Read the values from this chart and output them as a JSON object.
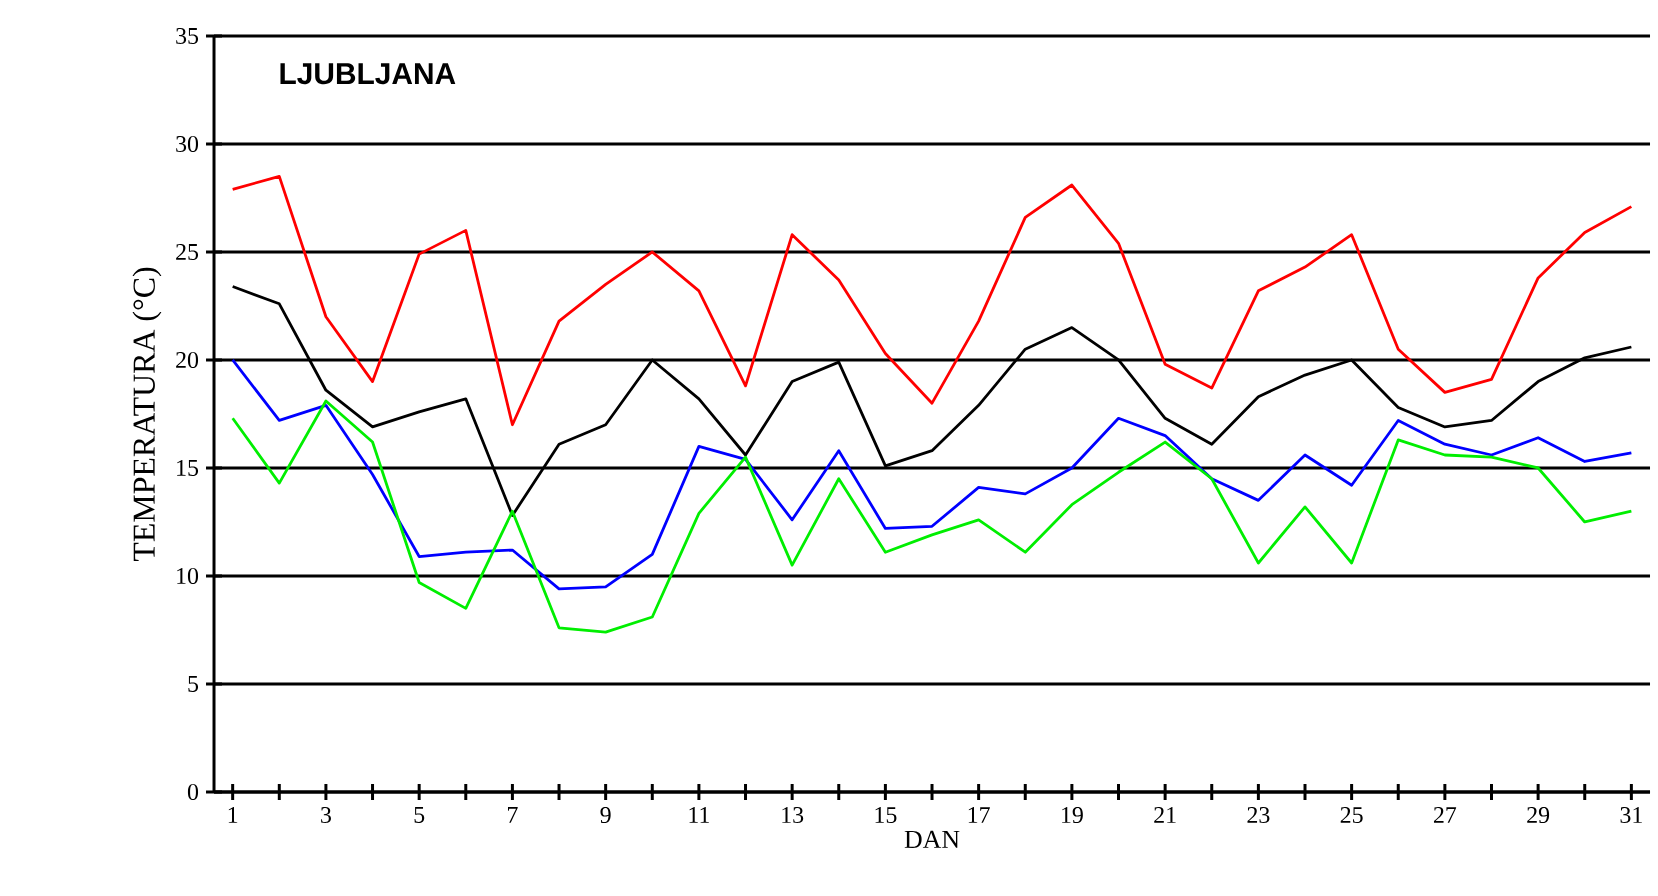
{
  "chart_data": {
    "type": "line",
    "title": "LJUBLJANA",
    "xlabel": "DAN",
    "ylabel": "TEMPERATURA (°C)",
    "x": [
      1,
      2,
      3,
      4,
      5,
      6,
      7,
      8,
      9,
      10,
      11,
      12,
      13,
      14,
      15,
      16,
      17,
      18,
      19,
      20,
      21,
      22,
      23,
      24,
      25,
      26,
      27,
      28,
      29,
      30,
      31
    ],
    "series": [
      {
        "color": "#ff0000",
        "values": [
          27.9,
          28.5,
          22,
          19,
          24.9,
          26,
          17,
          21.8,
          23.5,
          25,
          23.2,
          18.8,
          25.8,
          23.7,
          20.3,
          18,
          21.8,
          26.6,
          28.1,
          25.4,
          19.8,
          18.7,
          23.2,
          24.3,
          25.8,
          20.5,
          18.5,
          19.1,
          23.8,
          25.9,
          27.1
        ]
      },
      {
        "color": "#000000",
        "values": [
          23.4,
          22.6,
          18.6,
          16.9,
          17.6,
          18.2,
          12.8,
          16.1,
          17,
          20,
          18.2,
          15.6,
          19,
          19.9,
          15.1,
          15.8,
          17.9,
          20.5,
          21.5,
          20,
          17.3,
          16.1,
          18.3,
          19.3,
          20,
          17.8,
          16.9,
          17.2,
          19,
          20.1,
          20.6
        ]
      },
      {
        "color": "#0000ff",
        "values": [
          20,
          17.2,
          17.9,
          14.7,
          10.9,
          11.1,
          11.2,
          9.4,
          9.5,
          11,
          16,
          15.4,
          12.6,
          15.8,
          12.2,
          12.3,
          14.1,
          13.8,
          15,
          17.3,
          16.5,
          14.5,
          13.5,
          15.6,
          14.2,
          17.2,
          16.1,
          15.6,
          16.4,
          15.3,
          15.7
        ]
      },
      {
        "color": "#00ee00",
        "values": [
          17.3,
          14.3,
          18.1,
          16.2,
          9.7,
          8.5,
          13,
          7.6,
          7.4,
          8.1,
          12.9,
          15.5,
          10.5,
          14.5,
          11.1,
          11.9,
          12.6,
          11.1,
          13.3,
          14.8,
          16.2,
          14.5,
          10.6,
          13.2,
          10.6,
          16.3,
          15.6,
          15.5,
          15,
          12.5,
          13
        ]
      }
    ],
    "xlim": [
      0.6,
      31.4
    ],
    "ylim": [
      0,
      35
    ],
    "xticks": [
      1,
      {
        "value": 2,
        "label": null
      },
      3,
      {
        "value": 4,
        "label": null
      },
      5,
      {
        "value": 6,
        "label": null
      },
      7,
      {
        "value": 8,
        "label": null
      },
      9,
      {
        "value": 10,
        "label": null
      },
      11,
      {
        "value": 12,
        "label": null
      },
      13,
      {
        "value": 14,
        "label": null
      },
      15,
      {
        "value": 16,
        "label": null
      },
      17,
      {
        "value": 18,
        "label": null
      },
      19,
      {
        "value": 20,
        "label": null
      },
      21,
      {
        "value": 22,
        "label": null
      },
      23,
      {
        "value": 24,
        "label": null
      },
      25,
      {
        "value": 26,
        "label": null
      },
      27,
      {
        "value": 28,
        "label": null
      },
      29,
      {
        "value": 30,
        "label": null
      },
      31
    ],
    "yticks": [
      0,
      5,
      10,
      15,
      20,
      25,
      30,
      35
    ],
    "grid": "y",
    "marker": "none",
    "line_style": "solid"
  }
}
